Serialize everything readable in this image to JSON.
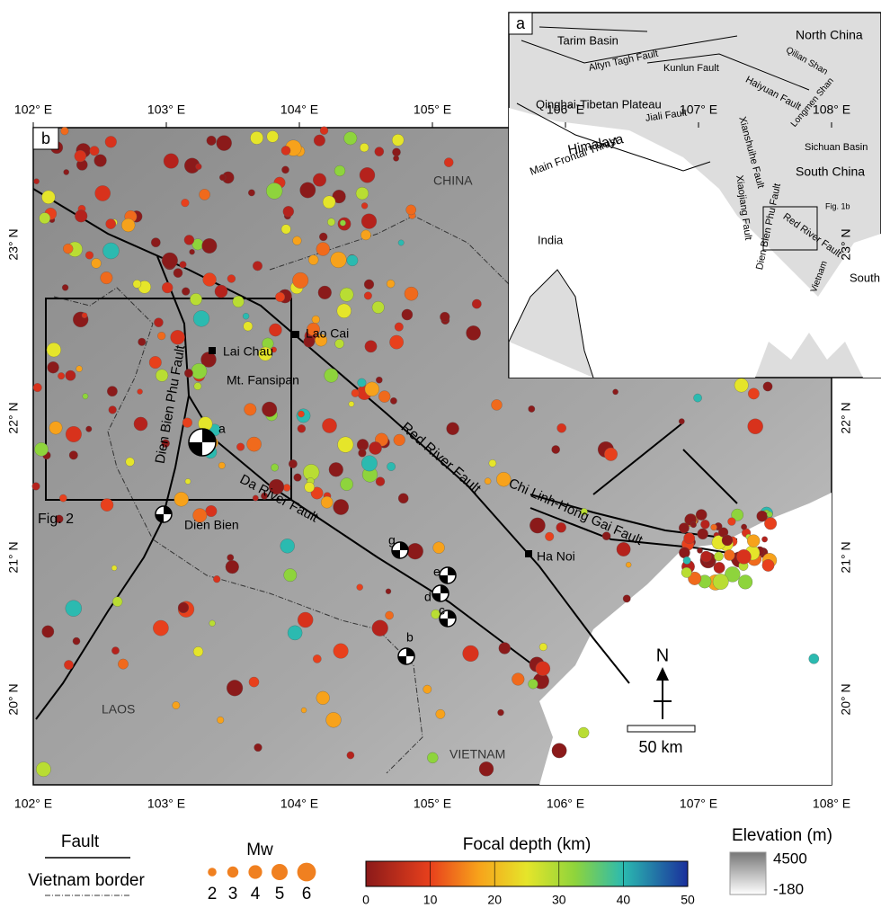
{
  "map_b": {
    "panel_label": "b",
    "x_labels": [
      "102° E",
      "103° E",
      "104° E",
      "105° E",
      "106° E",
      "107° E",
      "108° E"
    ],
    "y_labels": [
      "23° N",
      "22° N",
      "21° N",
      "20° N"
    ],
    "places": [
      "CHINA",
      "Lao Cai",
      "Lai Chau",
      "Mt. Fansipan",
      "Dien Bien",
      "Ha Noi",
      "LAOS",
      "VIETNAM",
      "Fig. 2"
    ],
    "faults": [
      "Red River Fault",
      "Da River Fault",
      "Dien Bien Phu Fault",
      "Chi Linh-Hong Gai Fault"
    ],
    "focal_labels": [
      "a",
      "b",
      "c",
      "d",
      "e",
      "g"
    ],
    "north": "N",
    "scale": "50 km"
  },
  "inset_a": {
    "panel_label": "a",
    "labels": [
      "Tarim Basin",
      "North China",
      "Altyn Tagh Fault",
      "Qilian Shan",
      "Kunlun Fault",
      "Haiyuan Fault",
      "Qinghai-Tibetan Plateau",
      "Longmen Shan",
      "Sichuan Basin",
      "Xianshuihe Fault",
      "Jiali Fault",
      "Himalaya",
      "South China",
      "Main Frontal Thrust",
      "Xiaojiang Fault",
      "Red River Fault",
      "Fig. 1b",
      "India",
      "Dien Bien Phu Fault",
      "Vietnam",
      "South China Sea"
    ]
  },
  "legend": {
    "fault": "Fault",
    "border": "Vietnam border",
    "mw_title": "Mw",
    "mw_values": [
      2,
      3,
      4,
      5,
      6
    ],
    "depth_title": "Focal depth (km)",
    "depth_ticks": [
      0,
      10,
      20,
      30,
      40,
      50
    ],
    "elevation_title": "Elevation (m)",
    "elevation_max": 4500,
    "elevation_min": -180
  }
}
